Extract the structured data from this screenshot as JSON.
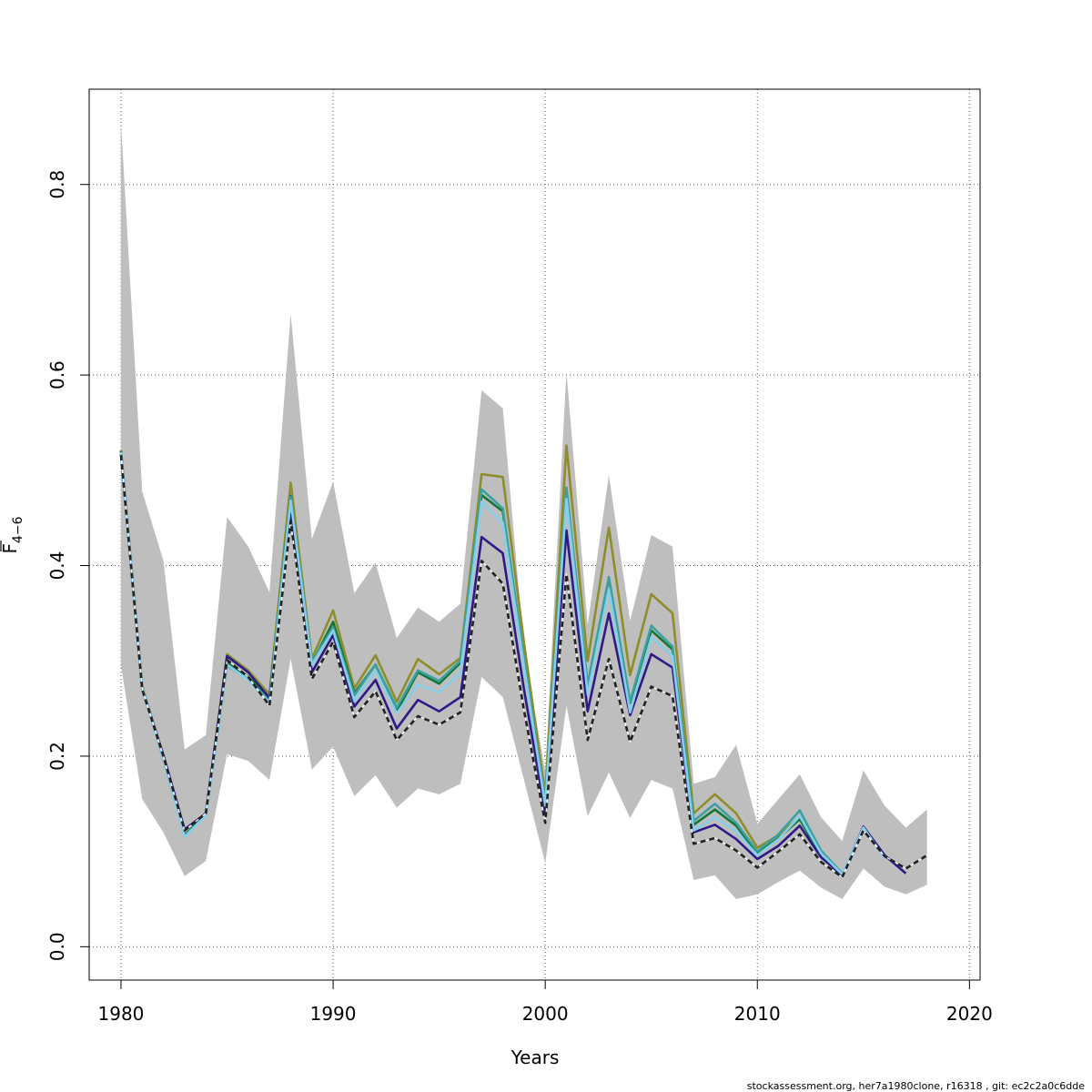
{
  "chart_data": {
    "type": "line",
    "xlabel": "Years",
    "ylabel_main": "F",
    "ylabel_sub": "4−6",
    "footer": "stockassessment.org, her7a1980clone, r16318 , git: ec2c2a0c6dde",
    "xlim": [
      1978.5,
      2020.5
    ],
    "ylim": [
      -0.035,
      0.9
    ],
    "xticks": [
      1980,
      1990,
      2000,
      2010,
      2020
    ],
    "xtick_labels": [
      "1980",
      "1990",
      "2000",
      "2010",
      "2020"
    ],
    "yticks": [
      0.0,
      0.2,
      0.4,
      0.6,
      0.8
    ],
    "ytick_labels": [
      "0.0",
      "0.2",
      "0.4",
      "0.6",
      "0.8"
    ],
    "grid": true,
    "band": {
      "color": "#bebebe",
      "x": [
        1980,
        1981,
        1982,
        1983,
        1984,
        1985,
        1986,
        1987,
        1988,
        1989,
        1990,
        1991,
        1992,
        1993,
        1994,
        1995,
        1996,
        1997,
        1998,
        1999,
        2000,
        2001,
        2002,
        2003,
        2004,
        2005,
        2006,
        2007,
        2008,
        2009,
        2010,
        2011,
        2012,
        2013,
        2014,
        2015,
        2016,
        2017,
        2018
      ],
      "upper": [
        0.865,
        0.478,
        0.405,
        0.207,
        0.222,
        0.451,
        0.42,
        0.372,
        0.664,
        0.428,
        0.488,
        0.371,
        0.403,
        0.324,
        0.356,
        0.341,
        0.36,
        0.584,
        0.565,
        0.313,
        0.184,
        0.603,
        0.338,
        0.495,
        0.342,
        0.432,
        0.42,
        0.171,
        0.178,
        0.212,
        0.129,
        0.155,
        0.181,
        0.136,
        0.111,
        0.185,
        0.148,
        0.125,
        0.144
      ],
      "lower": [
        0.295,
        0.155,
        0.12,
        0.074,
        0.09,
        0.202,
        0.195,
        0.175,
        0.302,
        0.186,
        0.21,
        0.158,
        0.18,
        0.146,
        0.166,
        0.16,
        0.171,
        0.283,
        0.262,
        0.175,
        0.088,
        0.253,
        0.137,
        0.183,
        0.135,
        0.175,
        0.166,
        0.07,
        0.075,
        0.05,
        0.055,
        0.068,
        0.08,
        0.062,
        0.05,
        0.082,
        0.063,
        0.055,
        0.065
      ]
    },
    "series": [
      {
        "color": "#222222",
        "dashed": true,
        "x": [
          1980,
          1981,
          1982,
          1983,
          1984,
          1985,
          1986,
          1987,
          1988,
          1989,
          1990,
          1991,
          1992,
          1993,
          1994,
          1995,
          1996,
          1997,
          1998,
          1999,
          2000,
          2001,
          2002,
          2003,
          2004,
          2005,
          2006,
          2007,
          2008,
          2009,
          2010,
          2011,
          2012,
          2013,
          2014,
          2015,
          2016,
          2017,
          2018
        ],
        "values": [
          0.516,
          0.27,
          0.2,
          0.122,
          0.14,
          0.301,
          0.283,
          0.253,
          0.447,
          0.281,
          0.32,
          0.241,
          0.268,
          0.217,
          0.242,
          0.233,
          0.246,
          0.405,
          0.381,
          0.248,
          0.13,
          0.391,
          0.217,
          0.302,
          0.215,
          0.273,
          0.263,
          0.108,
          0.114,
          0.101,
          0.083,
          0.1,
          0.118,
          0.089,
          0.073,
          0.122,
          0.095,
          0.082,
          0.096
        ]
      },
      {
        "color": "#87ceeb",
        "dashed": false,
        "x": [
          1980,
          1981,
          1982,
          1983,
          1984,
          1985,
          1986,
          1987,
          1988,
          1989,
          1990,
          1991,
          1992,
          1993,
          1994,
          1995,
          1996,
          1997,
          1998,
          1999,
          2000,
          2001,
          2002,
          2003,
          2004,
          2005,
          2006,
          2007,
          2008,
          2009,
          2010,
          2011,
          2012,
          2013,
          2014,
          2015,
          2016
        ],
        "values": [
          0.519,
          0.272,
          0.198,
          0.115,
          0.138,
          0.296,
          0.28,
          0.256,
          0.468,
          0.296,
          0.332,
          0.258,
          0.29,
          0.245,
          0.275,
          0.267,
          0.287,
          0.467,
          0.445,
          0.294,
          0.148,
          0.47,
          0.265,
          0.375,
          0.246,
          0.325,
          0.305,
          0.122,
          0.136,
          0.121,
          0.096,
          0.113,
          0.137,
          0.098,
          0.076,
          0.125,
          0.093
        ]
      },
      {
        "color": "#2e1a87",
        "dashed": false,
        "x": [
          1980,
          1981,
          1982,
          1983,
          1984,
          1985,
          1986,
          1987,
          1988,
          1989,
          1990,
          1991,
          1992,
          1993,
          1994,
          1995,
          1996,
          1997,
          1998,
          1999,
          2000,
          2001,
          2002,
          2003,
          2004,
          2005,
          2006,
          2007,
          2008,
          2009,
          2010,
          2011,
          2012,
          2013,
          2014,
          2015,
          2016,
          2017
        ],
        "values": [
          0.517,
          0.271,
          0.201,
          0.123,
          0.14,
          0.305,
          0.288,
          0.261,
          0.455,
          0.288,
          0.327,
          0.252,
          0.28,
          0.229,
          0.259,
          0.247,
          0.262,
          0.43,
          0.413,
          0.27,
          0.141,
          0.437,
          0.247,
          0.35,
          0.243,
          0.307,
          0.293,
          0.12,
          0.128,
          0.113,
          0.092,
          0.106,
          0.127,
          0.094,
          0.075,
          0.126,
          0.096,
          0.077
        ]
      },
      {
        "color": "#3ba0a0",
        "dashed": false,
        "x": [
          1980,
          1981,
          1982,
          1983,
          1984,
          1985,
          1986,
          1987,
          1988,
          1989,
          1990,
          1991,
          1992,
          1993,
          1994,
          1995,
          1996,
          1997,
          1998,
          1999,
          2000,
          2001,
          2002,
          2003,
          2004,
          2005,
          2006,
          2007,
          2008,
          2009,
          2010,
          2011,
          2012,
          2013,
          2014
        ],
        "values": [
          0.519,
          0.272,
          0.197,
          0.116,
          0.138,
          0.295,
          0.281,
          0.258,
          0.472,
          0.299,
          0.335,
          0.264,
          0.296,
          0.251,
          0.29,
          0.279,
          0.3,
          0.48,
          0.46,
          0.302,
          0.152,
          0.482,
          0.275,
          0.388,
          0.257,
          0.337,
          0.315,
          0.132,
          0.15,
          0.13,
          0.1,
          0.118,
          0.143,
          0.101,
          0.077
        ]
      },
      {
        "color": "#117733",
        "dashed": false,
        "x": [
          1980,
          1981,
          1982,
          1983,
          1984,
          1985,
          1986,
          1987,
          1988,
          1989,
          1990,
          1991,
          1992,
          1993,
          1994,
          1995,
          1996,
          1997,
          1998,
          1999,
          2000,
          2001,
          2002,
          2003,
          2004,
          2005,
          2006,
          2007,
          2008,
          2009,
          2010,
          2011,
          2012,
          2013
        ],
        "values": [
          0.52,
          0.273,
          0.198,
          0.117,
          0.139,
          0.299,
          0.283,
          0.261,
          0.473,
          0.297,
          0.341,
          0.266,
          0.296,
          0.247,
          0.288,
          0.276,
          0.298,
          0.474,
          0.457,
          0.3,
          0.148,
          0.48,
          0.275,
          0.387,
          0.256,
          0.332,
          0.312,
          0.128,
          0.144,
          0.127,
          0.098,
          0.114,
          0.134,
          0.095
        ]
      },
      {
        "color": "#8d8d2a",
        "dashed": false,
        "x": [
          1980,
          1981,
          1982,
          1983,
          1984,
          1985,
          1986,
          1987,
          1988,
          1989,
          1990,
          1991,
          1992,
          1993,
          1994,
          1995,
          1996,
          1997,
          1998,
          1999,
          2000,
          2001,
          2002,
          2003,
          2004,
          2005,
          2006,
          2007,
          2008,
          2009,
          2010,
          2011,
          2012
        ],
        "values": [
          0.521,
          0.273,
          0.199,
          0.117,
          0.139,
          0.307,
          0.29,
          0.265,
          0.487,
          0.302,
          0.353,
          0.271,
          0.306,
          0.257,
          0.302,
          0.286,
          0.303,
          0.496,
          0.493,
          0.319,
          0.16,
          0.526,
          0.3,
          0.44,
          0.285,
          0.37,
          0.35,
          0.14,
          0.16,
          0.14,
          0.104,
          0.117,
          0.136
        ]
      }
    ]
  }
}
